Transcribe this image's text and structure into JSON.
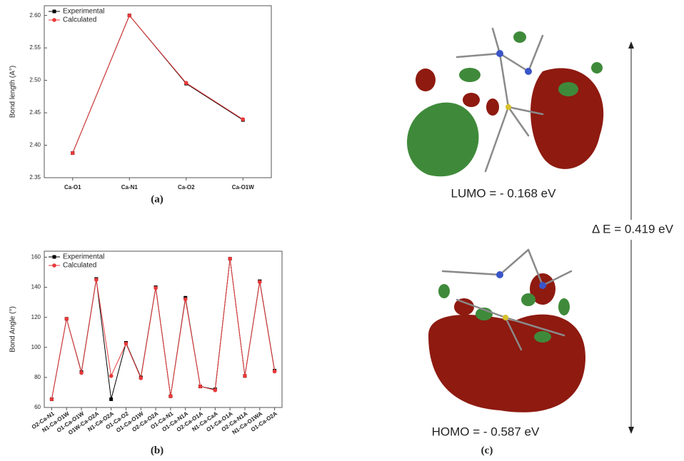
{
  "chart_data": [
    {
      "type": "line",
      "y_label": "Bond length (A°)",
      "categories": [
        "Ca-O1",
        "Ca-N1",
        "Ca-O2",
        "Ca-O1W"
      ],
      "series": [
        {
          "name": "Experimental",
          "color": "#000000",
          "values": [
            2.388,
            2.6,
            2.495,
            2.439
          ]
        },
        {
          "name": "Calculated",
          "color": "#e8393a",
          "values": [
            2.388,
            2.6,
            2.496,
            2.44
          ]
        }
      ],
      "ylim": [
        2.35,
        2.615
      ],
      "yticks": [
        2.35,
        {
          "value": 2.4,
          "label": "2.40"
        },
        2.45,
        {
          "value": 2.5,
          "label": "2.50"
        },
        2.55,
        {
          "value": 2.6,
          "label": "2.60"
        }
      ],
      "legend": "upper-left"
    },
    {
      "type": "line",
      "y_label": "Bond Angle (°)",
      "categories": [
        "O2-Ca-N1",
        "N1-Ca-O1W",
        "O1-Ca-O1W",
        "O1W-Ca-O2A",
        "N1-Ca-O2A",
        "O1-Ca-O2",
        "O1-Ca-O1W",
        "O2-Ca-O2A",
        "O1-Ca-N1",
        "O1-Ca-N1A",
        "O2-Ca-O1A",
        "N1-Ca-CaA",
        "O1-Ca-O1A",
        "O2-Ca-N1A",
        "N1-Ca-O1WA",
        "O1-Ca-O2A"
      ],
      "series": [
        {
          "name": "Experimental",
          "color": "#000000",
          "values": [
            65.5,
            119,
            83.5,
            145.5,
            65.5,
            103,
            80,
            140,
            67.5,
            133,
            74,
            72,
            159,
            81,
            144,
            84.5
          ]
        },
        {
          "name": "Calculated",
          "color": "#e8393a",
          "values": [
            65.5,
            119,
            83,
            145,
            81,
            102.5,
            79.5,
            139.5,
            67.5,
            132,
            74,
            71.5,
            159,
            81,
            143.5,
            84
          ]
        }
      ],
      "ylim": [
        60,
        164
      ],
      "yticks": [
        60,
        80,
        100,
        120,
        140,
        160
      ],
      "legend": "upper-left"
    }
  ],
  "figure": {
    "panel_labels": [
      "(a)",
      "(b)",
      "(c)"
    ],
    "lumo": "LUMO = - 0.168 eV",
    "homo": "HOMO = - 0.587 eV",
    "gap": "Δ E = 0.419 eV"
  }
}
